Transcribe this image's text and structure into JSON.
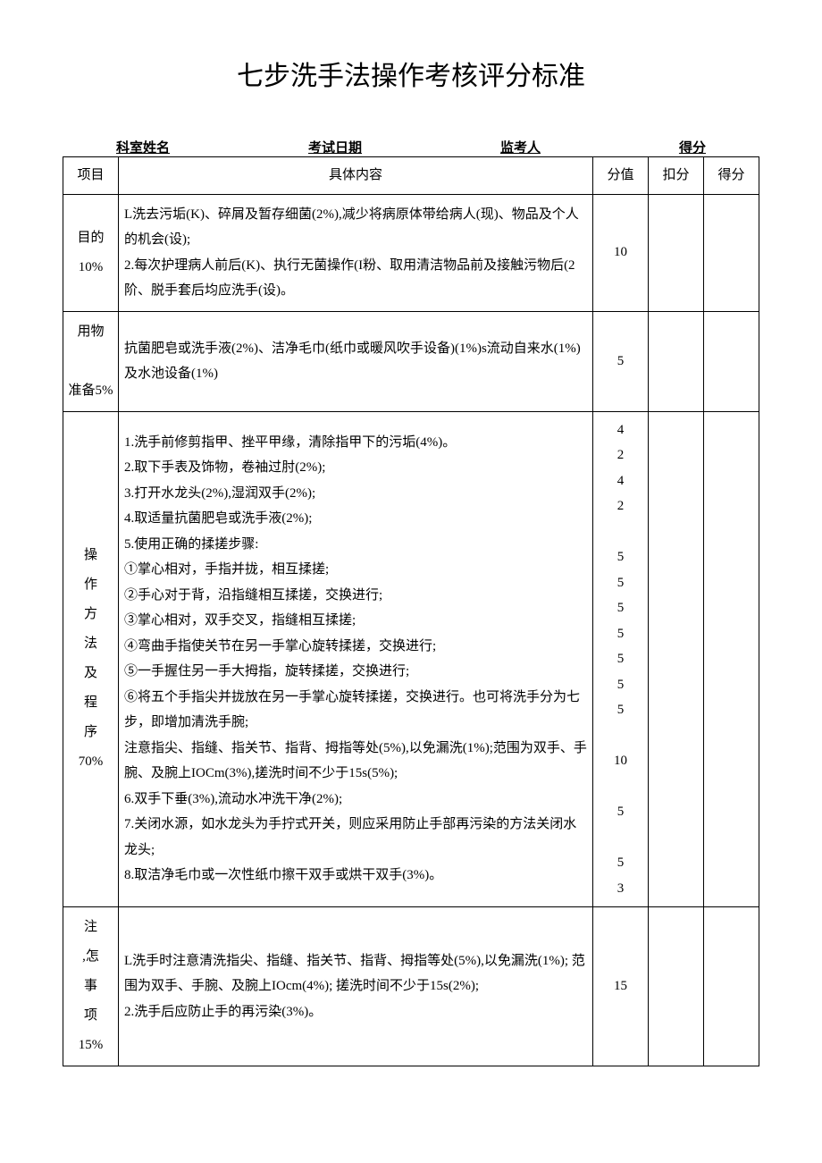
{
  "title": "七步洗手法操作考核评分标准",
  "meta": {
    "dept_name_label": "科室姓名",
    "exam_date_label": "考试日期",
    "proctor_label": "监考人",
    "score_label": "得分"
  },
  "headers": {
    "project": "项目",
    "content": "具体内容",
    "value": "分值",
    "deduct": "扣分",
    "got": "得分"
  },
  "rows": [
    {
      "project": "目的\n10%",
      "content": "L洗去污垢(K)、碎屑及暂存细菌(2%),减少将病原体带给病人(现)、物品及个人的机会(设);\n2.每次护理病人前后(K)、执行无菌操作(I粉、取用清洁物品前及接触污物后(2阶、脱手套后均应洗手(设)。",
      "score": "10"
    },
    {
      "project": "用物\n\n准备5%",
      "content": "抗菌肥皂或洗手液(2%)、洁净毛巾(纸巾或暖风吹手设备)(1%)s流动自来水(1%)及水池设备(1%)",
      "score": "5"
    },
    {
      "project": "操\n作\n方\n法\n及\n程\n序\n70%",
      "content": "1.洗手前修剪指甲、挫平甲缘，清除指甲下的污垢(4%)。\n2.取下手表及饰物，卷袖过肘(2%);\n3.打开水龙头(2%),湿润双手(2%);\n4.取适量抗菌肥皂或洗手液(2%);\n5.使用正确的揉搓步骤:\n①掌心相对，手指并拢，相互揉搓;\n②手心对于背，沿指缝相互揉搓，交换进行;\n③掌心相对，双手交叉，指缝相互揉搓;\n④弯曲手指使关节在另一手掌心旋转揉搓，交换进行;\n⑤一手握住另一手大拇指，旋转揉搓，交换进行;\n⑥将五个手指尖并拢放在另一手掌心旋转揉搓，交换进行。也可将洗手分为七步，即增加清洗手腕;\n注意指尖、指缝、指关节、指背、拇指等处(5%),以免漏洗(1%);范围为双手、手腕、及腕上IOCm(3%),搓洗时间不少于15s(5%);\n6.双手下垂(3%),流动水冲洗干净(2%);\n7.关闭水源，如水龙头为手拧式开关，则应采用防止手部再污染的方法关闭水龙头;\n8.取洁净毛巾或一次性纸巾擦干双手或烘干双手(3%)。",
      "score": "4\n2\n4\n2\n\n5\n5\n5\n5\n5\n5\n5\n\n10\n\n5\n\n5\n3"
    },
    {
      "project": "注\n,怎\n事\n项\n15%",
      "content": "L洗手时注意清洗指尖、指缝、指关节、指背、拇指等处(5%),以免漏洗(1%); 范围为双手、手腕、及腕上IOcm(4%); 搓洗时间不少于15s(2%);\n2.洗手后应防止手的再污染(3%)。",
      "score": "15"
    }
  ]
}
